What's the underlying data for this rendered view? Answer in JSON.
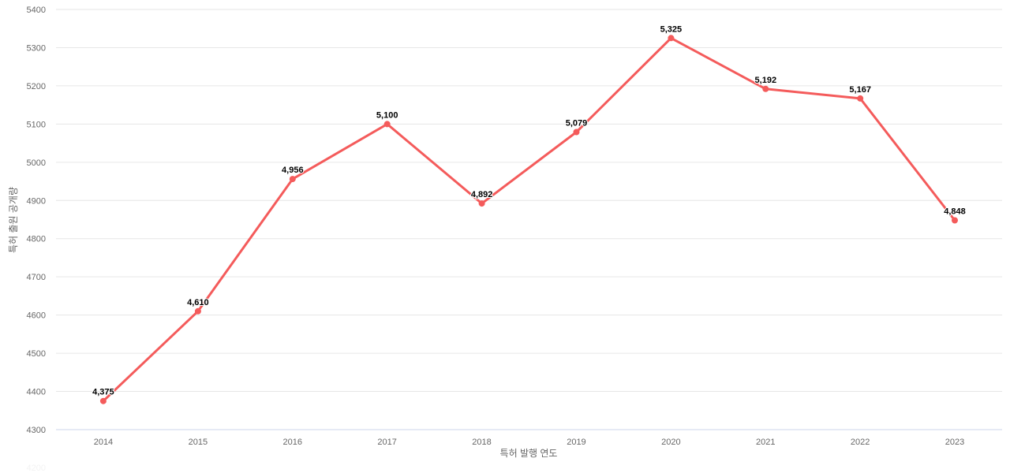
{
  "chart_data": {
    "type": "line",
    "title": "",
    "xlabel": "특허 발행 연도",
    "ylabel": "특허 출원 공개량",
    "categories": [
      "2014",
      "2015",
      "2016",
      "2017",
      "2018",
      "2019",
      "2020",
      "2021",
      "2022",
      "2023"
    ],
    "series": [
      {
        "name": "특허 출원 공개량",
        "values": [
          4375,
          4610,
          4956,
          5100,
          4892,
          5079,
          5325,
          5192,
          5167,
          4848
        ],
        "labels": [
          "4,375",
          "4,610",
          "4,956",
          "5,100",
          "4,892",
          "5,079",
          "5,325",
          "5,192",
          "5,167",
          "4,848"
        ]
      }
    ],
    "ylim": [
      4300,
      5400
    ],
    "ytick_step": 100,
    "ytick_labels": [
      "4300",
      "4400",
      "4500",
      "4600",
      "4700",
      "4800",
      "4900",
      "5000",
      "5100",
      "5200",
      "5300",
      "5400"
    ],
    "clipped_tick_label": "4200",
    "grid": true,
    "legend": false,
    "colors": {
      "line": "#f45b5b",
      "marker": "#f45b5b",
      "gridline": "#e6e6e6",
      "axis_line": "#ccd6eb",
      "tick_label": "#666666",
      "axis_title": "#666666",
      "data_label": "#000000",
      "clipped_tick": "#f3f3f3",
      "background": "#ffffff"
    }
  }
}
